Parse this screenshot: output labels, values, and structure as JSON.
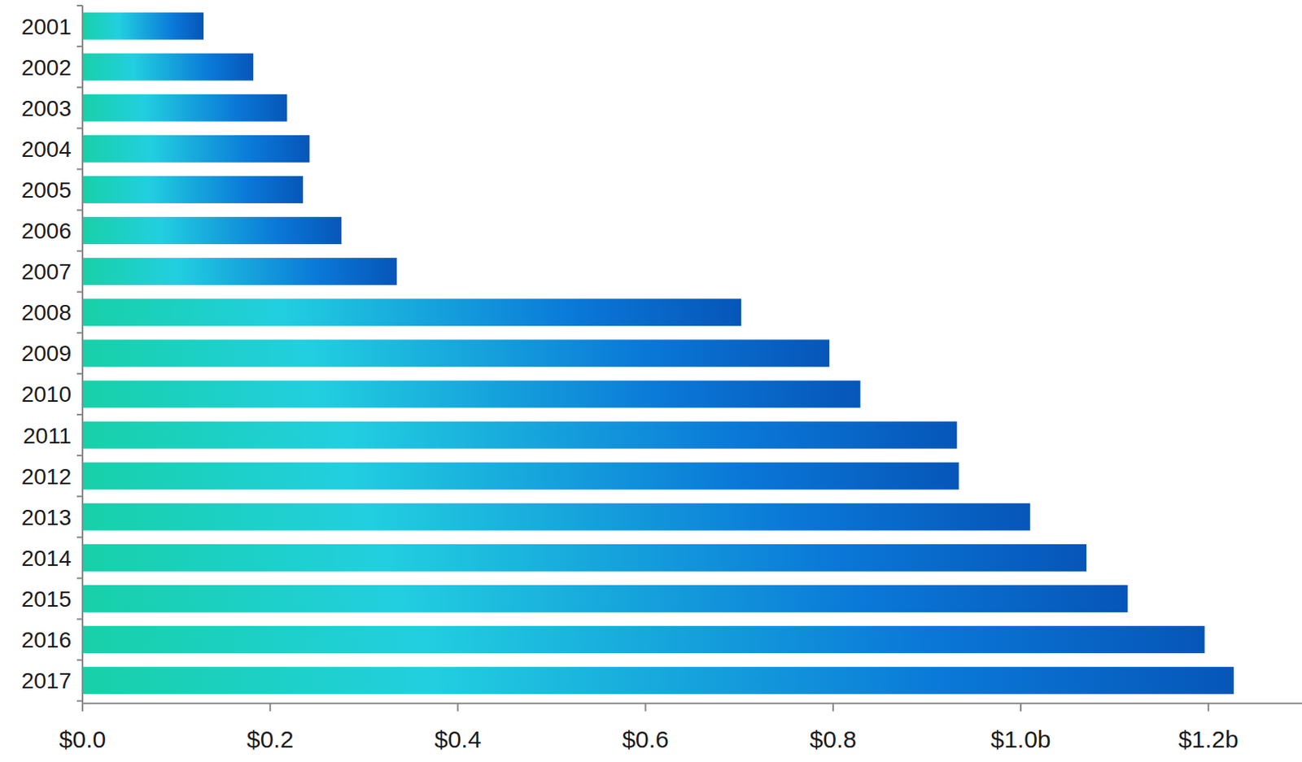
{
  "chart_data": {
    "type": "bar",
    "orientation": "horizontal",
    "color": "#0a78d8",
    "categories": [
      "2001",
      "2002",
      "2003",
      "2004",
      "2005",
      "2006",
      "2007",
      "2008",
      "2009",
      "2010",
      "2011",
      "2012",
      "2013",
      "2014",
      "2015",
      "2016",
      "2017"
    ],
    "values": [
      0.129,
      0.182,
      0.218,
      0.242,
      0.235,
      0.276,
      0.335,
      0.702,
      0.796,
      0.829,
      0.932,
      0.934,
      1.01,
      1.07,
      1.114,
      1.196,
      1.227
    ],
    "xlim": [
      0,
      1.3
    ],
    "xticks": [
      {
        "value": 0,
        "label": "$0.0"
      },
      {
        "value": 0.2,
        "label": "$0.2"
      },
      {
        "value": 0.4,
        "label": "$0.4"
      },
      {
        "value": 0.6,
        "label": "$0.6"
      },
      {
        "value": 0.8,
        "label": "$0.8"
      },
      {
        "value": 1.0,
        "label": "$1.0b"
      },
      {
        "value": 1.2,
        "label": "$1.2b"
      }
    ],
    "grid": false
  }
}
